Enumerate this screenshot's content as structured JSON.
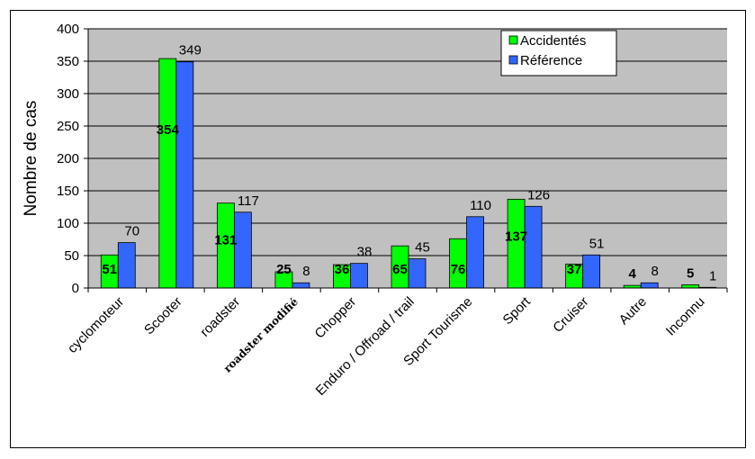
{
  "colors": {
    "plot_bg": "#c0c0c0",
    "accidentes": "#00ff00",
    "reference": "#3366ff",
    "gridline": "#000000"
  },
  "chart_data": {
    "type": "bar",
    "ylabel": "Nombre de cas",
    "ylim": [
      0,
      400
    ],
    "yticks": [
      "0",
      "50",
      "100",
      "150",
      "200",
      "250",
      "300",
      "350",
      "400"
    ],
    "grid": true,
    "legend_position": "top-right",
    "categories": [
      "cyclomoteur",
      "Scooter",
      "roadster",
      "roadster modifié",
      "Chopper",
      "Enduro / Offroad / trail",
      "Sport Tourisme",
      "Sport",
      "Cruiser",
      "Autre",
      "Inconnu"
    ],
    "series": [
      {
        "name": "Accidentés",
        "values": [
          51,
          354,
          131,
          25,
          36,
          65,
          76,
          137,
          37,
          4,
          5
        ],
        "labels": [
          "51",
          "354",
          "131",
          "25",
          "36",
          "65",
          "76",
          "137",
          "37",
          "4",
          "5"
        ]
      },
      {
        "name": "Référence",
        "values": [
          70,
          349,
          117,
          8,
          38,
          45,
          110,
          126,
          51,
          8,
          1
        ],
        "labels": [
          "70",
          "349",
          "117",
          "8",
          "38",
          "45",
          "110",
          "126",
          "51",
          "8",
          "1"
        ]
      }
    ]
  }
}
